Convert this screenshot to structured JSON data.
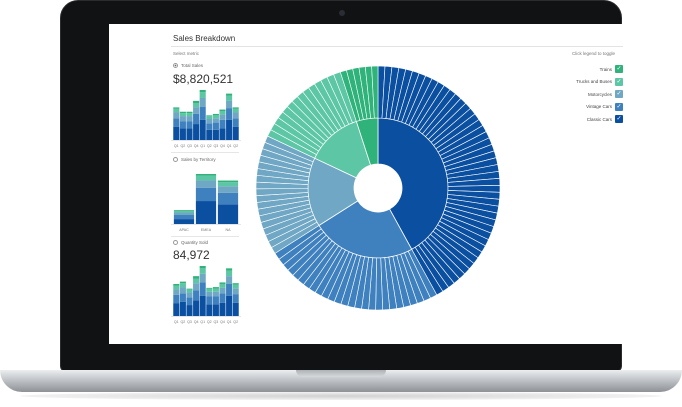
{
  "app": {
    "title": "Sales Breakdown",
    "select_metric_label": "Select metric",
    "toggle_hint": "Click legend to toggle"
  },
  "metrics": [
    {
      "label": "Total Sales",
      "value": "$8,820,521",
      "selected": true,
      "axis_labels": [
        "Q1",
        "Q2",
        "Q3",
        "Q4",
        "Q1",
        "Q2",
        "Q3",
        "Q4",
        "Q1",
        "Q2"
      ]
    },
    {
      "label": "Sales by Territory",
      "value": "",
      "selected": false,
      "axis_labels": [
        "APAC",
        "EMEA",
        "NA"
      ]
    },
    {
      "label": "Quantity Sold",
      "value": "84,972",
      "selected": false,
      "axis_labels": [
        "Q1",
        "Q2",
        "Q3",
        "Q4",
        "Q1",
        "Q2",
        "Q3",
        "Q4",
        "Q1",
        "Q2"
      ]
    }
  ],
  "legend": [
    {
      "label": "Trains",
      "color": "#2fb37a",
      "checked": true
    },
    {
      "label": "Trucks and Buses",
      "color": "#5cc6a5",
      "checked": true
    },
    {
      "label": "Motorcycles",
      "color": "#6fa7c4",
      "checked": true
    },
    {
      "label": "Vintage Cars",
      "color": "#3f81bf",
      "checked": true
    },
    {
      "label": "Classic Cars",
      "color": "#0b4fa1",
      "checked": true
    }
  ],
  "colors": {
    "classic": "#0b4fa1",
    "vintage": "#3f81bf",
    "motorcycles": "#6fa7c4",
    "trucks": "#5cc6a5",
    "trains": "#2fb37a"
  },
  "chart_data": {
    "type": "sunburst",
    "slices": [
      {
        "name": "Classic Cars",
        "share": 0.42
      },
      {
        "name": "Vintage Cars",
        "share": 0.24
      },
      {
        "name": "Motorcycles",
        "share": 0.16
      },
      {
        "name": "Trucks and Buses",
        "share": 0.13
      },
      {
        "name": "Trains",
        "share": 0.05
      }
    ],
    "mini_charts": {
      "total_sales": {
        "type": "bar",
        "categories": [
          "Q1",
          "Q2",
          "Q3",
          "Q4",
          "Q1",
          "Q2",
          "Q3",
          "Q4",
          "Q1",
          "Q2"
        ],
        "series": [
          {
            "name": "Classic Cars",
            "values": [
              18,
              16,
              16,
              22,
              28,
              14,
              14,
              16,
              28,
              18
            ]
          },
          {
            "name": "Vintage Cars",
            "values": [
              12,
              10,
              10,
              14,
              18,
              9,
              10,
              12,
              16,
              12
            ]
          },
          {
            "name": "Motorcycles",
            "values": [
              8,
              7,
              7,
              9,
              12,
              6,
              6,
              7,
              10,
              8
            ]
          },
          {
            "name": "Trucks and Buses",
            "values": [
              5,
              4,
              4,
              6,
              8,
              4,
              4,
              5,
              7,
              5
            ]
          },
          {
            "name": "Trains",
            "values": [
              2,
              2,
              2,
              3,
              3,
              1,
              2,
              2,
              3,
              2
            ]
          }
        ]
      },
      "sales_by_territory": {
        "type": "bar",
        "categories": [
          "APAC",
          "EMEA",
          "NA"
        ],
        "series": [
          {
            "name": "Classic Cars",
            "values": [
              6,
              28,
              24
            ]
          },
          {
            "name": "Vintage Cars",
            "values": [
              5,
              16,
              14
            ]
          },
          {
            "name": "Motorcycles",
            "values": [
              3,
              9,
              8
            ]
          },
          {
            "name": "Trucks and Buses",
            "values": [
              2,
              6,
              5
            ]
          },
          {
            "name": "Trains",
            "values": [
              1,
              2,
              2
            ]
          }
        ]
      },
      "quantity_sold": {
        "type": "bar",
        "categories": [
          "Q1",
          "Q2",
          "Q3",
          "Q4",
          "Q1",
          "Q2",
          "Q3",
          "Q4",
          "Q1",
          "Q2"
        ],
        "series": [
          {
            "name": "Classic Cars",
            "values": [
              16,
              18,
              14,
              20,
              26,
              15,
              15,
              17,
              26,
              17
            ]
          },
          {
            "name": "Vintage Cars",
            "values": [
              11,
              11,
              10,
              13,
              17,
              10,
              10,
              12,
              15,
              11
            ]
          },
          {
            "name": "Motorcycles",
            "values": [
              7,
              8,
              6,
              9,
              11,
              6,
              6,
              7,
              10,
              7
            ]
          },
          {
            "name": "Trucks and Buses",
            "values": [
              5,
              5,
              4,
              6,
              7,
              4,
              4,
              5,
              7,
              5
            ]
          },
          {
            "name": "Trains",
            "values": [
              2,
              2,
              1,
              3,
              3,
              1,
              2,
              2,
              3,
              2
            ]
          }
        ]
      }
    }
  }
}
